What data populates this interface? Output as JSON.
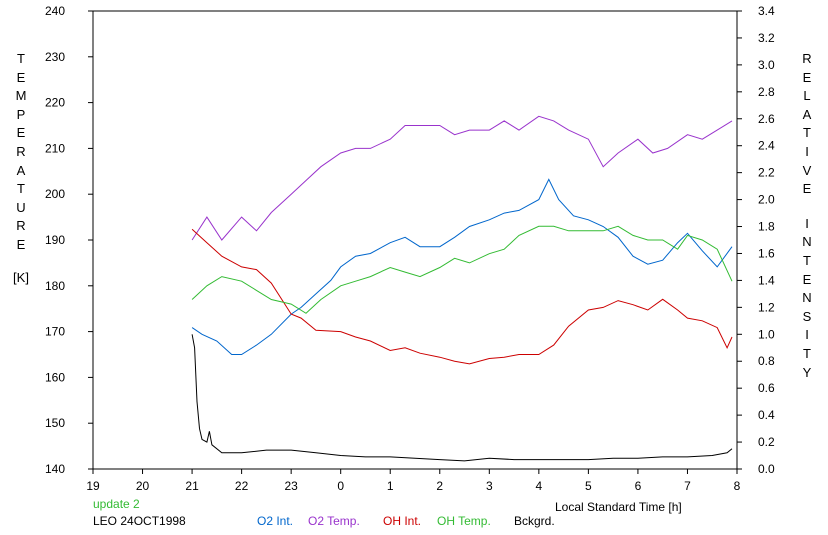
{
  "chart_data": {
    "type": "line",
    "y_left_label": "TEMPERATURE",
    "y_left_unit": "[K]",
    "y_right_label_1": "RELATIVE",
    "y_right_label_2": "INTENSITY",
    "x_label": "Local Standard Time [h]",
    "update_label": "update 2",
    "station_label": "LEO 24OCT1998",
    "x_ticks": [
      "19",
      "20",
      "21",
      "22",
      "23",
      "0",
      "1",
      "2",
      "3",
      "4",
      "5",
      "6",
      "7",
      "8"
    ],
    "y_left_ticks": [
      "240",
      "230",
      "220",
      "210",
      "200",
      "190",
      "180",
      "170",
      "160",
      "150",
      "140"
    ],
    "y_right_ticks": [
      "3.4",
      "3.2",
      "3.0",
      "2.8",
      "2.6",
      "2.4",
      "2.2",
      "2.0",
      "1.8",
      "1.6",
      "1.4",
      "1.2",
      "1.0",
      "0.8",
      "0.6",
      "0.4",
      "0.2",
      "0.0"
    ],
    "xlim": [
      19,
      32
    ],
    "ylim_left": [
      140,
      240
    ],
    "ylim_right": [
      0,
      3.4
    ],
    "grid": false,
    "legend_placement": "bottom",
    "series": [
      {
        "name": "O2 Int.",
        "color": "#0066cc",
        "axis": "right",
        "points": [
          [
            21.0,
            1.05
          ],
          [
            21.2,
            1.0
          ],
          [
            21.5,
            0.95
          ],
          [
            21.8,
            0.85
          ],
          [
            22.0,
            0.85
          ],
          [
            22.3,
            0.92
          ],
          [
            22.6,
            1.0
          ],
          [
            23.0,
            1.15
          ],
          [
            23.2,
            1.2
          ],
          [
            23.5,
            1.3
          ],
          [
            23.8,
            1.4
          ],
          [
            24.0,
            1.5
          ],
          [
            24.3,
            1.58
          ],
          [
            24.6,
            1.6
          ],
          [
            25.0,
            1.68
          ],
          [
            25.3,
            1.72
          ],
          [
            25.6,
            1.65
          ],
          [
            26.0,
            1.65
          ],
          [
            26.3,
            1.72
          ],
          [
            26.6,
            1.8
          ],
          [
            27.0,
            1.85
          ],
          [
            27.3,
            1.9
          ],
          [
            27.6,
            1.92
          ],
          [
            28.0,
            2.0
          ],
          [
            28.2,
            2.15
          ],
          [
            28.4,
            2.0
          ],
          [
            28.7,
            1.88
          ],
          [
            29.0,
            1.85
          ],
          [
            29.3,
            1.8
          ],
          [
            29.6,
            1.72
          ],
          [
            29.9,
            1.58
          ],
          [
            30.2,
            1.52
          ],
          [
            30.5,
            1.55
          ],
          [
            30.8,
            1.68
          ],
          [
            31.0,
            1.75
          ],
          [
            31.3,
            1.62
          ],
          [
            31.6,
            1.5
          ],
          [
            31.9,
            1.65
          ]
        ]
      },
      {
        "name": "O2 Temp.",
        "color": "#9933cc",
        "axis": "left",
        "points": [
          [
            21.0,
            190
          ],
          [
            21.3,
            195
          ],
          [
            21.6,
            190
          ],
          [
            22.0,
            195
          ],
          [
            22.3,
            192
          ],
          [
            22.6,
            196
          ],
          [
            23.0,
            200
          ],
          [
            23.3,
            203
          ],
          [
            23.6,
            206
          ],
          [
            24.0,
            209
          ],
          [
            24.3,
            210
          ],
          [
            24.6,
            210
          ],
          [
            25.0,
            212
          ],
          [
            25.3,
            215
          ],
          [
            25.6,
            215
          ],
          [
            26.0,
            215
          ],
          [
            26.3,
            213
          ],
          [
            26.6,
            214
          ],
          [
            27.0,
            214
          ],
          [
            27.3,
            216
          ],
          [
            27.6,
            214
          ],
          [
            28.0,
            217
          ],
          [
            28.3,
            216
          ],
          [
            28.6,
            214
          ],
          [
            29.0,
            212
          ],
          [
            29.3,
            206
          ],
          [
            29.6,
            209
          ],
          [
            30.0,
            212
          ],
          [
            30.3,
            209
          ],
          [
            30.6,
            210
          ],
          [
            31.0,
            213
          ],
          [
            31.3,
            212
          ],
          [
            31.6,
            214
          ],
          [
            31.9,
            216
          ]
        ]
      },
      {
        "name": "OH Int.",
        "color": "#cc0000",
        "axis": "right",
        "points": [
          [
            21.0,
            1.78
          ],
          [
            21.3,
            1.68
          ],
          [
            21.6,
            1.58
          ],
          [
            22.0,
            1.5
          ],
          [
            22.3,
            1.48
          ],
          [
            22.6,
            1.38
          ],
          [
            23.0,
            1.15
          ],
          [
            23.2,
            1.12
          ],
          [
            23.5,
            1.03
          ],
          [
            24.0,
            1.02
          ],
          [
            24.3,
            0.98
          ],
          [
            24.6,
            0.95
          ],
          [
            25.0,
            0.88
          ],
          [
            25.3,
            0.9
          ],
          [
            25.6,
            0.86
          ],
          [
            26.0,
            0.83
          ],
          [
            26.3,
            0.8
          ],
          [
            26.6,
            0.78
          ],
          [
            27.0,
            0.82
          ],
          [
            27.3,
            0.83
          ],
          [
            27.6,
            0.85
          ],
          [
            28.0,
            0.85
          ],
          [
            28.3,
            0.92
          ],
          [
            28.6,
            1.06
          ],
          [
            29.0,
            1.18
          ],
          [
            29.3,
            1.2
          ],
          [
            29.6,
            1.25
          ],
          [
            29.9,
            1.22
          ],
          [
            30.2,
            1.18
          ],
          [
            30.5,
            1.26
          ],
          [
            30.8,
            1.18
          ],
          [
            31.0,
            1.12
          ],
          [
            31.3,
            1.1
          ],
          [
            31.6,
            1.05
          ],
          [
            31.8,
            0.9
          ],
          [
            31.9,
            0.98
          ]
        ]
      },
      {
        "name": "OH Temp.",
        "color": "#33bb33",
        "axis": "left",
        "points": [
          [
            21.0,
            177
          ],
          [
            21.3,
            180
          ],
          [
            21.6,
            182
          ],
          [
            22.0,
            181
          ],
          [
            22.3,
            179
          ],
          [
            22.6,
            177
          ],
          [
            23.0,
            176
          ],
          [
            23.3,
            174
          ],
          [
            23.6,
            177
          ],
          [
            24.0,
            180
          ],
          [
            24.3,
            181
          ],
          [
            24.6,
            182
          ],
          [
            25.0,
            184
          ],
          [
            25.3,
            183
          ],
          [
            25.6,
            182
          ],
          [
            26.0,
            184
          ],
          [
            26.3,
            186
          ],
          [
            26.6,
            185
          ],
          [
            27.0,
            187
          ],
          [
            27.3,
            188
          ],
          [
            27.6,
            191
          ],
          [
            28.0,
            193
          ],
          [
            28.3,
            193
          ],
          [
            28.6,
            192
          ],
          [
            29.0,
            192
          ],
          [
            29.3,
            192
          ],
          [
            29.6,
            193
          ],
          [
            29.9,
            191
          ],
          [
            30.2,
            190
          ],
          [
            30.5,
            190
          ],
          [
            30.8,
            188
          ],
          [
            31.0,
            191
          ],
          [
            31.3,
            190
          ],
          [
            31.6,
            188
          ],
          [
            31.9,
            181
          ]
        ]
      },
      {
        "name": "Bckgrd.",
        "color": "#000000",
        "axis": "right",
        "points": [
          [
            21.0,
            1.0
          ],
          [
            21.05,
            0.9
          ],
          [
            21.1,
            0.5
          ],
          [
            21.15,
            0.3
          ],
          [
            21.2,
            0.22
          ],
          [
            21.3,
            0.2
          ],
          [
            21.35,
            0.28
          ],
          [
            21.4,
            0.18
          ],
          [
            21.6,
            0.12
          ],
          [
            22.0,
            0.12
          ],
          [
            22.5,
            0.14
          ],
          [
            23.0,
            0.14
          ],
          [
            23.5,
            0.12
          ],
          [
            24.0,
            0.1
          ],
          [
            24.5,
            0.09
          ],
          [
            25.0,
            0.09
          ],
          [
            25.5,
            0.08
          ],
          [
            26.0,
            0.07
          ],
          [
            26.5,
            0.06
          ],
          [
            27.0,
            0.08
          ],
          [
            27.5,
            0.07
          ],
          [
            28.0,
            0.07
          ],
          [
            28.5,
            0.07
          ],
          [
            29.0,
            0.07
          ],
          [
            29.5,
            0.08
          ],
          [
            30.0,
            0.08
          ],
          [
            30.5,
            0.09
          ],
          [
            31.0,
            0.09
          ],
          [
            31.5,
            0.1
          ],
          [
            31.8,
            0.12
          ],
          [
            31.9,
            0.15
          ]
        ]
      }
    ]
  }
}
